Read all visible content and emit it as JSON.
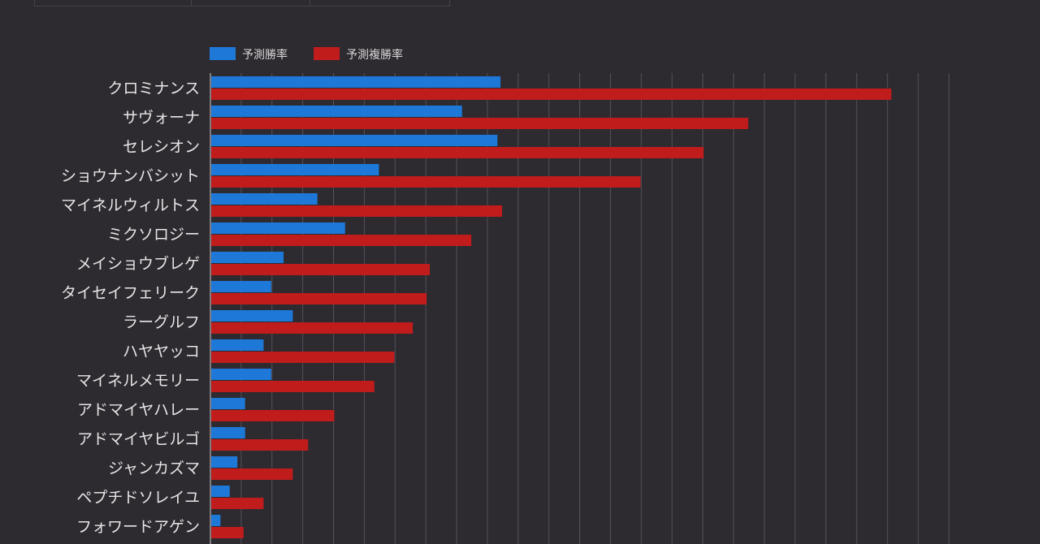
{
  "chart_data": {
    "type": "bar",
    "orientation": "horizontal",
    "title": "",
    "xlabel": "",
    "ylabel": "",
    "xlim": [
      0,
      48
    ],
    "grid": true,
    "legend_position": "top-left",
    "categories": [
      "クロミナンス",
      "サヴォーナ",
      "セレシオン",
      "ショウナンバシット",
      "マイネルウィルトス",
      "ミクソロジー",
      "メイショウブレゲ",
      "タイセイフェリーク",
      "ラーグルフ",
      "ハヤヤッコ",
      "マイネルメモリー",
      "アドマイヤハレー",
      "アドマイヤビルゴ",
      "ジャンカズマ",
      "ペプチドソレイユ",
      "フォワードアゲン"
    ],
    "series": [
      {
        "name": "予測勝率",
        "color": "#1e78d8",
        "values": [
          18.8,
          16.3,
          18.6,
          10.9,
          6.9,
          8.7,
          4.7,
          3.9,
          5.3,
          3.4,
          3.9,
          2.2,
          2.2,
          1.7,
          1.2,
          0.6
        ]
      },
      {
        "name": "予測複勝率",
        "color": "#c01c1c",
        "values": [
          44.2,
          34.9,
          32.0,
          27.9,
          18.9,
          16.9,
          14.2,
          14.0,
          13.1,
          11.9,
          10.6,
          8.0,
          6.3,
          5.3,
          3.4,
          2.1
        ]
      }
    ]
  }
}
